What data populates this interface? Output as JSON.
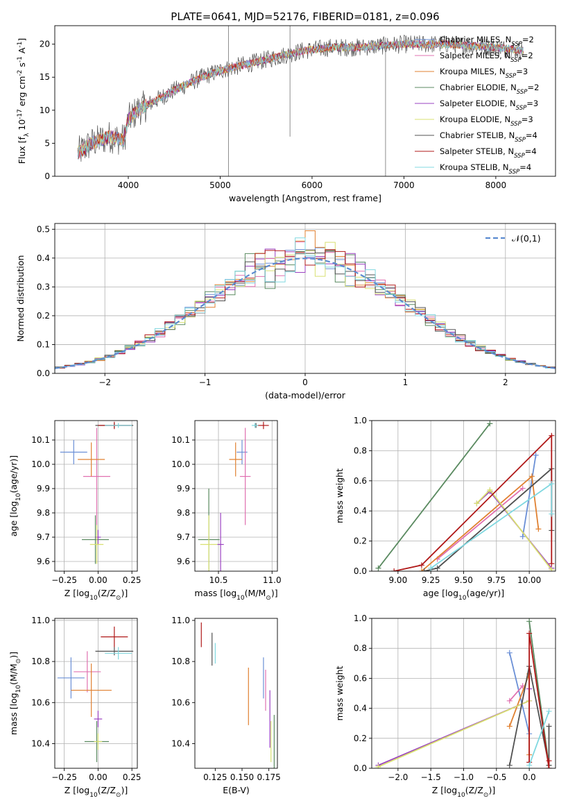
{
  "figure_title": "PLATE=0641, MJD=52176, FIBERID=0181, z=0.096",
  "colors": {
    "Chabrier MILES": "#6a8fd6",
    "Salpeter MILES": "#e070b0",
    "Kroupa MILES": "#e08030",
    "Chabrier ELODIE": "#5a8a60",
    "Salpeter ELODIE": "#9a40c0",
    "Kroupa ELODIE": "#d8e070",
    "Chabrier STELIB": "#505050",
    "Salpeter STELIB": "#b01818",
    "Kroupa STELIB": "#80d8e0",
    "normal": "#5b8bd0"
  },
  "chart_data": [
    {
      "id": "spectrum",
      "type": "line",
      "title": "PLATE=0641, MJD=52176, FIBERID=0181, z=0.096",
      "xlabel": "wavelength [Angstrom, rest frame]",
      "ylabel": "Flux [f$_\\lambda 10^{-17}$ erg cm$^{-2}$ s$^{-1}$ A$^{-1}$]",
      "xlim": [
        3200,
        8650
      ],
      "ylim": [
        0,
        22.8
      ],
      "xticks": [
        4000,
        5000,
        6000,
        7000,
        8000
      ],
      "yticks": [
        0,
        5,
        10,
        15,
        20
      ],
      "grid": false,
      "legend_position": "top-right",
      "continuum": {
        "x": [
          3450,
          3600,
          3800,
          3950,
          4000,
          4100,
          4300,
          4500,
          4800,
          5000,
          5300,
          5600,
          5900,
          6200,
          6500,
          7000,
          7500,
          8000,
          8300
        ],
        "y": [
          3.5,
          5.0,
          6.0,
          5.5,
          8.5,
          10.0,
          11.5,
          13.0,
          15.0,
          16.0,
          17.0,
          18.0,
          19.0,
          19.5,
          19.5,
          20.0,
          20.0,
          19.5,
          19.0
        ]
      },
      "spikes": [
        {
          "x": 5090,
          "y_min": 0,
          "y_max": 22.8
        },
        {
          "x": 5760,
          "y_min": 6,
          "y_max": 22.8
        },
        {
          "x": 6800,
          "y_min": 0,
          "y_max": 21
        }
      ],
      "series": [
        {
          "name": "Chabrier MILES",
          "nssp": "2"
        },
        {
          "name": "Salpeter MILES",
          "nssp": "2"
        },
        {
          "name": "Kroupa MILES",
          "nssp": "3"
        },
        {
          "name": "Chabrier ELODIE",
          "nssp": "2"
        },
        {
          "name": "Salpeter ELODIE",
          "nssp": "3"
        },
        {
          "name": "Kroupa ELODIE",
          "nssp": "3"
        },
        {
          "name": "Chabrier STELIB",
          "nssp": "4"
        },
        {
          "name": "Salpeter STELIB",
          "nssp": "4"
        },
        {
          "name": "Kroupa STELIB",
          "nssp": "4"
        }
      ]
    },
    {
      "id": "residuals",
      "type": "histogram",
      "xlabel": "(data-model)/error",
      "ylabel": "Normed distribution",
      "xlim": [
        -2.5,
        2.5
      ],
      "ylim": [
        0,
        0.52
      ],
      "xticks": [
        -2,
        -1,
        0,
        1,
        2
      ],
      "yticks": [
        0.0,
        0.1,
        0.2,
        0.3,
        0.4,
        0.5
      ],
      "grid": true,
      "bins": 50,
      "legend_position": "top-right",
      "reference_curve": {
        "name": "$\\mathcal{N}(0,1)$",
        "style": "dashed"
      }
    },
    {
      "id": "age_vs_Z",
      "type": "scatter",
      "xlabel": "Z [log$_{10}$(Z/Z$_\\odot$)]",
      "ylabel": "age  [log$_{10}$(age/yr)]",
      "xlim": [
        -0.32,
        0.29
      ],
      "ylim": [
        9.56,
        10.18
      ],
      "xticks": [
        -0.25,
        0.0,
        0.25
      ],
      "yticks": [
        9.6,
        9.7,
        9.8,
        9.9,
        10.0,
        10.1
      ],
      "grid": true,
      "points": [
        {
          "series": "Chabrier MILES",
          "x": -0.18,
          "y": 10.05,
          "xerr": 0.1,
          "yerr": 0.05
        },
        {
          "series": "Salpeter MILES",
          "x": -0.01,
          "y": 9.95,
          "xerr": 0.1,
          "yerr": 0.2
        },
        {
          "series": "Kroupa MILES",
          "x": -0.05,
          "y": 10.02,
          "xerr": 0.1,
          "yerr": 0.07
        },
        {
          "series": "Chabrier ELODIE",
          "x": -0.02,
          "y": 9.69,
          "xerr": 0.1,
          "yerr": 0.1
        },
        {
          "series": "Salpeter ELODIE",
          "x": 0.0,
          "y": 9.7,
          "xerr": 0.02,
          "yerr": 0.03
        },
        {
          "series": "Kroupa ELODIE",
          "x": -0.01,
          "y": 9.67,
          "xerr": 0.05,
          "yerr": 0.08
        },
        {
          "series": "Chabrier STELIB",
          "x": 0.12,
          "y": 10.16,
          "xerr": 0.14,
          "yerr": 0.01
        },
        {
          "series": "Salpeter STELIB",
          "x": 0.12,
          "y": 10.16,
          "xerr": 0.12,
          "yerr": 0.015
        },
        {
          "series": "Kroupa STELIB",
          "x": 0.15,
          "y": 10.16,
          "xerr": 0.1,
          "yerr": 0.01
        }
      ]
    },
    {
      "id": "age_vs_mass",
      "type": "scatter",
      "xlabel": "mass [log$_{10}$(M/M$_\\odot$)]",
      "ylabel": "",
      "xlim": [
        10.28,
        11.05
      ],
      "ylim": [
        9.56,
        10.18
      ],
      "xticks": [
        10.5,
        11.0
      ],
      "yticks": [
        9.6,
        9.7,
        9.8,
        9.9,
        10.0,
        10.1
      ],
      "grid": true,
      "points": [
        {
          "series": "Chabrier MILES",
          "x": 10.72,
          "y": 10.05,
          "xerr": 0.05,
          "yerr": 0.05
        },
        {
          "series": "Salpeter MILES",
          "x": 10.75,
          "y": 9.95,
          "xerr": 0.05,
          "yerr": 0.2
        },
        {
          "series": "Kroupa MILES",
          "x": 10.66,
          "y": 10.02,
          "xerr": 0.06,
          "yerr": 0.07
        },
        {
          "series": "Chabrier ELODIE",
          "x": 10.41,
          "y": 9.69,
          "xerr": 0.1,
          "yerr": 0.21
        },
        {
          "series": "Salpeter ELODIE",
          "x": 10.52,
          "y": 9.67,
          "xerr": 0.03,
          "yerr": 0.13
        },
        {
          "series": "Kroupa ELODIE",
          "x": 10.41,
          "y": 9.67,
          "xerr": 0.08,
          "yerr": 0.12
        },
        {
          "series": "Chabrier STELIB",
          "x": 10.85,
          "y": 10.16,
          "xerr": 0.02,
          "yerr": 0.01
        },
        {
          "series": "Salpeter STELIB",
          "x": 10.92,
          "y": 10.16,
          "xerr": 0.05,
          "yerr": 0.015
        },
        {
          "series": "Kroupa STELIB",
          "x": 10.84,
          "y": 10.16,
          "xerr": 0.03,
          "yerr": 0.01
        }
      ]
    },
    {
      "id": "massweight_vs_age",
      "type": "line",
      "xlabel": "age  [log$_{10}$(age/yr)]",
      "ylabel": "mass weight",
      "xlim": [
        8.8,
        10.2
      ],
      "ylim": [
        0,
        1
      ],
      "xticks": [
        9.0,
        9.25,
        9.5,
        9.75,
        10.0
      ],
      "yticks": [
        0.0,
        0.2,
        0.4,
        0.6,
        0.8,
        1.0
      ],
      "grid": true,
      "series": [
        {
          "name": "Chabrier MILES",
          "x": [
            9.95,
            10.05
          ],
          "y": [
            0.23,
            0.77
          ]
        },
        {
          "name": "Salpeter MILES",
          "x": [
            9.3,
            9.95
          ],
          "y": [
            0.08,
            0.55
          ]
        },
        {
          "name": "Kroupa MILES",
          "x": [
            9.18,
            10.02,
            10.07
          ],
          "y": [
            0.0,
            0.63,
            0.28
          ]
        },
        {
          "name": "Chabrier ELODIE",
          "x": [
            8.85,
            9.7
          ],
          "y": [
            0.02,
            0.98
          ]
        },
        {
          "name": "Salpeter ELODIE",
          "x": [
            9.6,
            9.7,
            10.17
          ],
          "y": [
            0.45,
            0.53,
            0.02
          ]
        },
        {
          "name": "Kroupa ELODIE",
          "x": [
            9.6,
            9.7,
            10.17
          ],
          "y": [
            0.45,
            0.54,
            0.01
          ]
        },
        {
          "name": "Chabrier STELIB",
          "x": [
            9.2,
            9.3,
            10.17,
            10.17
          ],
          "y": [
            0.0,
            0.02,
            0.68,
            0.27
          ]
        },
        {
          "name": "Salpeter STELIB",
          "x": [
            8.97,
            9.18,
            10.17,
            10.17
          ],
          "y": [
            0.0,
            0.04,
            0.9,
            0.05
          ]
        },
        {
          "name": "Kroupa STELIB",
          "x": [
            9.25,
            10.17,
            10.17
          ],
          "y": [
            0.02,
            0.58,
            0.38
          ]
        }
      ]
    },
    {
      "id": "mass_vs_Z",
      "type": "scatter",
      "xlabel": "Z [log$_{10}$(Z/Z$_\\odot$)]",
      "ylabel": "mass [log$_{10}$(M/M$_\\odot$)]",
      "xlim": [
        -0.32,
        0.29
      ],
      "ylim": [
        10.28,
        11.01
      ],
      "xticks": [
        -0.25,
        0.0,
        0.25
      ],
      "yticks": [
        10.4,
        10.6,
        10.8,
        11.0
      ],
      "grid": true,
      "points": [
        {
          "series": "Chabrier MILES",
          "x": -0.2,
          "y": 10.72,
          "xerr": 0.1,
          "yerr": 0.1
        },
        {
          "series": "Salpeter MILES",
          "x": -0.08,
          "y": 10.75,
          "xerr": 0.1,
          "yerr": 0.1
        },
        {
          "series": "Kroupa MILES",
          "x": -0.05,
          "y": 10.66,
          "xerr": 0.15,
          "yerr": 0.13
        },
        {
          "series": "Chabrier ELODIE",
          "x": -0.01,
          "y": 10.41,
          "xerr": 0.09,
          "yerr": 0.1
        },
        {
          "series": "Salpeter ELODIE",
          "x": 0.0,
          "y": 10.52,
          "xerr": 0.03,
          "yerr": 0.04
        },
        {
          "series": "Kroupa ELODIE",
          "x": 0.0,
          "y": 10.41,
          "xerr": 0.03,
          "yerr": 0.04
        },
        {
          "series": "Chabrier STELIB",
          "x": 0.12,
          "y": 10.85,
          "xerr": 0.14,
          "yerr": 0.02
        },
        {
          "series": "Salpeter STELIB",
          "x": 0.12,
          "y": 10.92,
          "xerr": 0.1,
          "yerr": 0.05
        },
        {
          "series": "Kroupa STELIB",
          "x": 0.15,
          "y": 10.84,
          "xerr": 0.1,
          "yerr": 0.03
        }
      ]
    },
    {
      "id": "mass_vs_ebv",
      "type": "scatter",
      "xlabel": "E(B-V)",
      "ylabel": "",
      "xlim": [
        0.106,
        0.183
      ],
      "ylim": [
        10.28,
        11.01
      ],
      "xticks": [
        0.125,
        0.15,
        0.175
      ],
      "xticklabels": [
        "0.125",
        "0.150",
        "0.175"
      ],
      "yticks": [
        10.4,
        10.6,
        10.8,
        11.0
      ],
      "grid": false,
      "points": [
        {
          "series": "Chabrier MILES",
          "x": 0.17,
          "y": 10.72,
          "xerr": 0,
          "yerr": 0.1
        },
        {
          "series": "Salpeter MILES",
          "x": 0.172,
          "y": 10.66,
          "xerr": 0,
          "yerr": 0.1
        },
        {
          "series": "Kroupa MILES",
          "x": 0.156,
          "y": 10.63,
          "xerr": 0,
          "yerr": 0.14
        },
        {
          "series": "Chabrier ELODIE",
          "x": 0.18,
          "y": 10.41,
          "xerr": 0,
          "yerr": 0.13
        },
        {
          "series": "Salpeter ELODIE",
          "x": 0.176,
          "y": 10.52,
          "xerr": 0,
          "yerr": 0.14
        },
        {
          "series": "Kroupa ELODIE",
          "x": 0.177,
          "y": 10.41,
          "xerr": 0,
          "yerr": 0.1
        },
        {
          "series": "Chabrier STELIB",
          "x": 0.122,
          "y": 10.86,
          "xerr": 0,
          "yerr": 0.08
        },
        {
          "series": "Salpeter STELIB",
          "x": 0.112,
          "y": 10.93,
          "xerr": 0,
          "yerr": 0.06
        },
        {
          "series": "Kroupa STELIB",
          "x": 0.125,
          "y": 10.84,
          "xerr": 0,
          "yerr": 0.05
        }
      ]
    },
    {
      "id": "massweight_vs_Z",
      "type": "line",
      "xlabel": "Z [log$_{10}$(Z/Z$_\\odot$)]",
      "ylabel": "mass weight",
      "xlim": [
        -2.4,
        0.4
      ],
      "ylim": [
        0,
        1
      ],
      "xticks": [
        -2.0,
        -1.5,
        -1.0,
        -0.5,
        0.0
      ],
      "yticks": [
        0.0,
        0.2,
        0.4,
        0.6,
        0.8,
        1.0
      ],
      "grid": true,
      "series": [
        {
          "name": "Chabrier MILES",
          "x": [
            -0.3,
            0.0
          ],
          "y": [
            0.77,
            0.23
          ]
        },
        {
          "name": "Salpeter MILES",
          "x": [
            -0.3,
            -0.1
          ],
          "y": [
            0.45,
            0.55
          ]
        },
        {
          "name": "Kroupa MILES",
          "x": [
            -0.3,
            0.0,
            0.0
          ],
          "y": [
            0.28,
            0.63,
            0.09
          ]
        },
        {
          "name": "Chabrier ELODIE",
          "x": [
            0.0,
            0.3
          ],
          "y": [
            0.98,
            0.02
          ]
        },
        {
          "name": "Salpeter ELODIE",
          "x": [
            -2.3,
            0.0,
            0.0
          ],
          "y": [
            0.02,
            0.45,
            0.53
          ]
        },
        {
          "name": "Kroupa ELODIE",
          "x": [
            -2.3,
            0.0
          ],
          "y": [
            0.01,
            0.45
          ]
        },
        {
          "name": "Chabrier STELIB",
          "x": [
            -0.3,
            0.0,
            0.3,
            0.3
          ],
          "y": [
            0.02,
            0.68,
            0.02,
            0.28
          ]
        },
        {
          "name": "Salpeter STELIB",
          "x": [
            0.0,
            0.0,
            0.3,
            0.3
          ],
          "y": [
            0.04,
            0.9,
            0.0,
            0.05
          ]
        },
        {
          "name": "Kroupa STELIB",
          "x": [
            0.0,
            0.3
          ],
          "y": [
            0.02,
            0.38
          ]
        }
      ]
    }
  ]
}
